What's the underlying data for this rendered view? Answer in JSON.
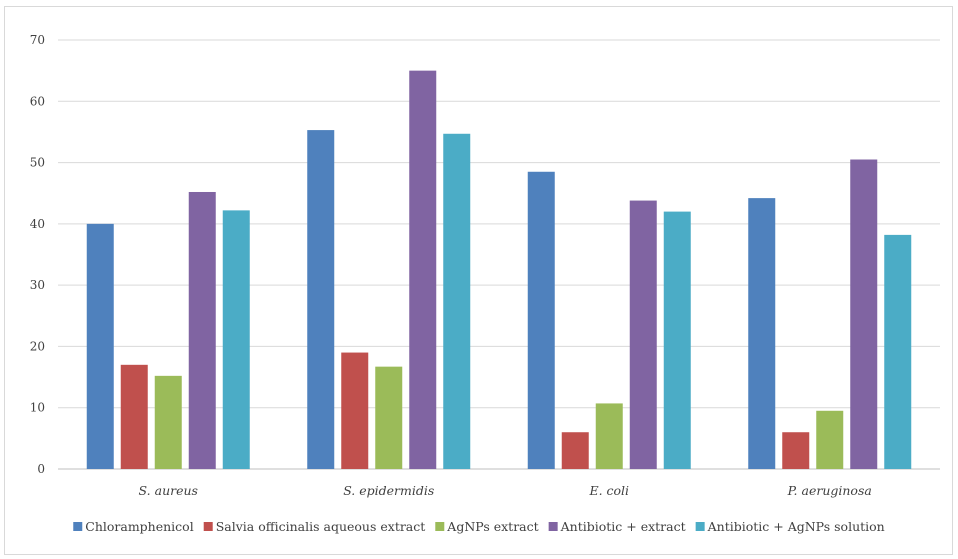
{
  "chart_data": {
    "type": "bar",
    "title": "",
    "xlabel": "",
    "ylabel": "",
    "categories": [
      "S. aureus",
      "S. epidermidis",
      "E. coli",
      "P. aeruginosa"
    ],
    "ylim": [
      0,
      70
    ],
    "yticks": [
      0,
      10,
      20,
      30,
      40,
      50,
      60,
      70
    ],
    "grid": true,
    "legend_position": "bottom",
    "series": [
      {
        "name": "Chloramphenicol",
        "color": "#4f81bd",
        "values": [
          40,
          55.3,
          48.5,
          44.2
        ]
      },
      {
        "name": "Salvia officinalis aqueous extract",
        "color": "#c0504d",
        "values": [
          17,
          19,
          6,
          6
        ]
      },
      {
        "name": "AgNPs extract",
        "color": "#9bbb59",
        "values": [
          15.2,
          16.7,
          10.7,
          9.5
        ]
      },
      {
        "name": "Antibiotic + extract",
        "color": "#8064a2",
        "values": [
          45.2,
          65,
          43.8,
          50.5
        ]
      },
      {
        "name": "Antibiotic +  AgNPs solution",
        "color": "#4bacc6",
        "values": [
          42.2,
          54.7,
          42,
          38.2
        ]
      }
    ]
  }
}
